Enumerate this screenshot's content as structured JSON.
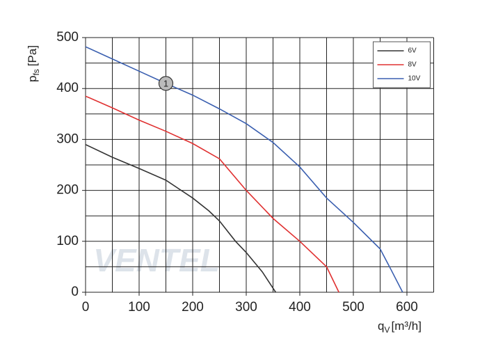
{
  "chart_data": {
    "type": "line",
    "y_label": {
      "symbol": "p",
      "subscript": "fs",
      "unit": "[Pa]"
    },
    "x_label": {
      "symbol": "q",
      "subscript": "V",
      "unit": "[m³/h]"
    },
    "watermark": "VENTEL",
    "xlim": [
      0,
      650
    ],
    "ylim": [
      0,
      500
    ],
    "xticks": [
      0,
      100,
      200,
      300,
      400,
      500,
      600
    ],
    "yticks": [
      0,
      100,
      200,
      300,
      400,
      500
    ],
    "x_minor_grid": [
      50,
      150,
      250,
      350,
      450,
      550,
      650
    ],
    "y_minor_grid": [
      50,
      150,
      250,
      350,
      450
    ],
    "grid": true,
    "legend": "upper right",
    "series": [
      {
        "name": "6V",
        "color": "#333333",
        "x": [
          0,
          50,
          100,
          150,
          200,
          230,
          250,
          280,
          300,
          330,
          355
        ],
        "values": [
          290,
          265,
          243,
          220,
          185,
          160,
          140,
          100,
          78,
          40,
          0
        ]
      },
      {
        "name": "8V",
        "color": "#e03030",
        "x": [
          0,
          50,
          100,
          150,
          200,
          250,
          300,
          350,
          400,
          450,
          473
        ],
        "values": [
          385,
          362,
          338,
          316,
          292,
          262,
          200,
          145,
          100,
          50,
          0
        ]
      },
      {
        "name": "10V",
        "color": "#3a5fb0",
        "x": [
          0,
          50,
          100,
          150,
          200,
          250,
          300,
          350,
          400,
          450,
          500,
          550,
          570,
          592
        ],
        "values": [
          482,
          458,
          434,
          410,
          387,
          360,
          331,
          294,
          246,
          185,
          137,
          85,
          45,
          0
        ]
      }
    ],
    "annotation": {
      "text": "1",
      "x": 150,
      "y": 410
    }
  }
}
